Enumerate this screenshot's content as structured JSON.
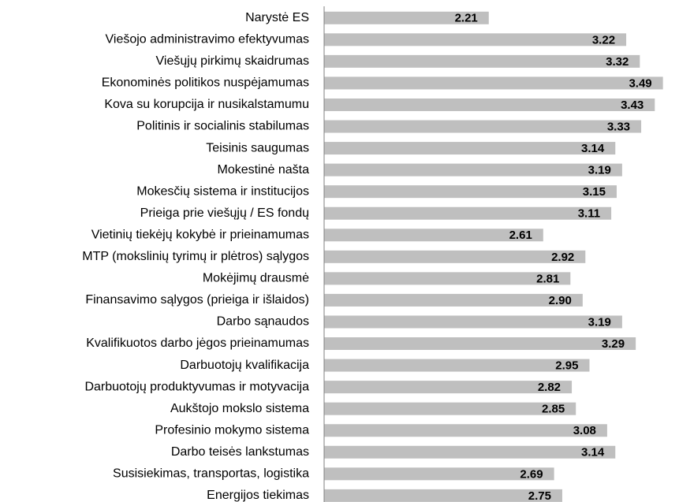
{
  "chart_data": {
    "type": "barh",
    "categories": [
      "Narystė ES",
      "Viešojo administravimo efektyvumas",
      "Viešųjų pirkimų skaidrumas",
      "Ekonominės politikos nuspėjamumas",
      "Kova su korupcija ir nusikalstamumu",
      "Politinis ir socialinis stabilumas",
      "Teisinis saugumas",
      "Mokestinė našta",
      "Mokesčių sistema ir institucijos",
      "Prieiga prie viešųjų / ES fondų",
      "Vietinių tiekėjų kokybė ir prieinamumas",
      "MTP (mokslinių tyrimų ir plėtros) sąlygos",
      "Mokėjimų drausmė",
      "Finansavimo sąlygos (prieiga ir išlaidos)",
      "Darbo sąnaudos",
      "Kvalifikuotos darbo jėgos prieinamumas",
      "Darbuotojų kvalifikacija",
      "Darbuotojų produktyvumas ir motyvacija",
      "Aukštojo mokslo sistema",
      "Profesinio mokymo sistema",
      "Darbo teisės lankstumas",
      "Susisiekimas, transportas, logistika",
      "Energijos tiekimas"
    ],
    "values": [
      2.21,
      3.22,
      3.32,
      3.49,
      3.43,
      3.33,
      3.14,
      3.19,
      3.15,
      3.11,
      2.61,
      2.92,
      2.81,
      2.9,
      3.19,
      3.29,
      2.95,
      2.82,
      2.85,
      3.08,
      3.14,
      2.69,
      2.75
    ],
    "value_labels": [
      "2.21",
      "3.22",
      "3.32",
      "3.49",
      "3.43",
      "3.33",
      "3.14",
      "3.19",
      "3.15",
      "3.11",
      "2.61",
      "2.92",
      "2.81",
      "2.90",
      "3.19",
      "3.29",
      "2.95",
      "2.82",
      "2.85",
      "3.08",
      "3.14",
      "2.69",
      "2.75"
    ],
    "color": "#bfbfbf",
    "xlim": [
      1,
      3.55
    ]
  }
}
